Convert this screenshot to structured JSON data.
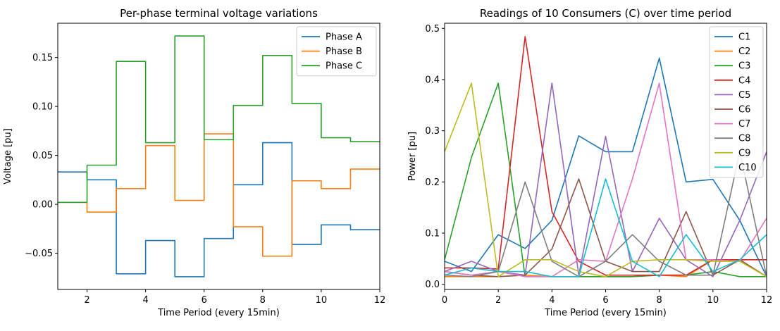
{
  "chart_data": [
    {
      "type": "line",
      "step": true,
      "title": "Per-phase terminal voltage variations",
      "xlabel": "Time Period (every 15min)",
      "ylabel": "Voltage [pu]",
      "xlim": [
        1,
        12
      ],
      "ylim": [
        -0.087,
        0.185
      ],
      "xticks": [
        2,
        4,
        6,
        8,
        10,
        12
      ],
      "xtick_labels": [
        "2",
        "4",
        "6",
        "8",
        "10",
        "12"
      ],
      "yticks": [
        -0.05,
        0.0,
        0.05,
        0.1,
        0.15
      ],
      "ytick_labels": [
        "−0.05",
        "0.00",
        "0.05",
        "0.10",
        "0.15"
      ],
      "grid": false,
      "legend": "top-right",
      "x": [
        1,
        2,
        3,
        4,
        5,
        6,
        7,
        8,
        9,
        10,
        11,
        12
      ],
      "series": [
        {
          "name": "Phase A",
          "color": "#1f77b4",
          "values": [
            0.033,
            0.025,
            -0.071,
            -0.037,
            -0.074,
            -0.035,
            0.02,
            0.063,
            -0.041,
            -0.021,
            -0.026,
            -0.026
          ]
        },
        {
          "name": "Phase B",
          "color": "#ff7f0e",
          "values": [
            0.002,
            -0.008,
            0.016,
            0.06,
            0.004,
            0.072,
            -0.023,
            -0.053,
            0.024,
            0.016,
            0.036,
            0.036
          ]
        },
        {
          "name": "Phase C",
          "color": "#2ca02c",
          "values": [
            0.002,
            0.04,
            0.146,
            0.063,
            0.172,
            0.066,
            0.101,
            0.152,
            0.103,
            0.068,
            0.064,
            0.064
          ]
        }
      ]
    },
    {
      "type": "line",
      "title": "Readings of 10 Consumers (C) over time period",
      "xlabel": "Time Period (every 15min)",
      "ylabel": "Power [pu]",
      "xlim": [
        0,
        12
      ],
      "ylim": [
        -0.01,
        0.51
      ],
      "xticks": [
        0,
        2,
        4,
        6,
        8,
        10,
        12
      ],
      "xtick_labels": [
        "0",
        "2",
        "4",
        "6",
        "8",
        "10",
        "12"
      ],
      "yticks": [
        0.0,
        0.1,
        0.2,
        0.3,
        0.4,
        0.5
      ],
      "ytick_labels": [
        "0.0",
        "0.1",
        "0.2",
        "0.3",
        "0.4",
        "0.5"
      ],
      "grid": false,
      "legend": "top-right",
      "x": [
        0,
        1,
        2,
        3,
        4,
        5,
        6,
        7,
        8,
        9,
        10,
        11,
        12
      ],
      "series": [
        {
          "name": "C1",
          "color": "#1f77b4",
          "values": [
            0.045,
            0.025,
            0.097,
            0.07,
            0.125,
            0.29,
            0.259,
            0.259,
            0.442,
            0.2,
            0.205,
            0.125,
            0.015
          ]
        },
        {
          "name": "C2",
          "color": "#ff7f0e",
          "values": [
            0.015,
            0.015,
            0.015,
            0.018,
            0.015,
            0.015,
            0.015,
            0.015,
            0.018,
            0.015,
            0.048,
            0.048,
            0.015
          ]
        },
        {
          "name": "C3",
          "color": "#2ca02c",
          "values": [
            0.048,
            0.248,
            0.393,
            0.015,
            0.015,
            0.015,
            0.015,
            0.015,
            0.018,
            0.018,
            0.025,
            0.015,
            0.015
          ]
        },
        {
          "name": "C4",
          "color": "#d62728",
          "values": [
            0.032,
            0.032,
            0.03,
            0.484,
            0.142,
            0.045,
            0.018,
            0.018,
            0.018,
            0.018,
            0.048,
            0.048,
            0.048
          ]
        },
        {
          "name": "C5",
          "color": "#9467bd",
          "values": [
            0.025,
            0.045,
            0.025,
            0.018,
            0.393,
            0.018,
            0.289,
            0.025,
            0.129,
            0.048,
            0.015,
            0.125,
            0.259
          ]
        },
        {
          "name": "C6",
          "color": "#8c564b",
          "values": [
            0.025,
            0.018,
            0.015,
            0.018,
            0.069,
            0.206,
            0.045,
            0.025,
            0.025,
            0.142,
            0.018,
            0.048,
            0.015
          ]
        },
        {
          "name": "C7",
          "color": "#e377c2",
          "values": [
            0.025,
            0.018,
            0.025,
            0.015,
            0.015,
            0.048,
            0.045,
            0.206,
            0.393,
            0.048,
            0.048,
            0.045,
            0.129
          ]
        },
        {
          "name": "C8",
          "color": "#7f7f7f",
          "values": [
            0.018,
            0.015,
            0.025,
            0.2,
            0.045,
            0.015,
            0.045,
            0.097,
            0.045,
            0.018,
            0.018,
            0.259,
            0.015
          ]
        },
        {
          "name": "C9",
          "color": "#bcbd22",
          "values": [
            0.259,
            0.393,
            0.015,
            0.048,
            0.048,
            0.025,
            0.015,
            0.045,
            0.048,
            0.048,
            0.045,
            0.045,
            0.015
          ]
        },
        {
          "name": "C10",
          "color": "#17becf",
          "values": [
            0.018,
            0.032,
            0.025,
            0.025,
            0.015,
            0.015,
            0.206,
            0.045,
            0.015,
            0.097,
            0.025,
            0.048,
            0.097
          ]
        }
      ]
    }
  ]
}
